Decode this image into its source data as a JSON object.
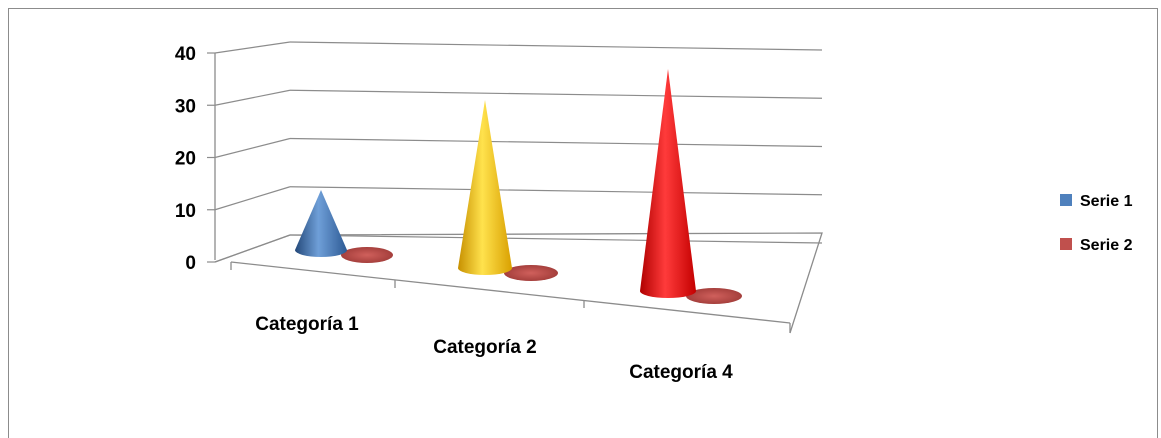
{
  "chart_data": {
    "type": "bar",
    "subtype": "3d-cone",
    "categories": [
      "Categoría 1",
      "Categoría 2",
      "Categoría 4"
    ],
    "series": [
      {
        "name": "Serie 1",
        "values": [
          10,
          28,
          37
        ],
        "point_colors": [
          "#4f81bd",
          "#ffc000",
          "#ff0000"
        ]
      },
      {
        "name": "Serie 2",
        "values": [
          0,
          0,
          0
        ],
        "color": "#c0504d"
      }
    ],
    "ylim": [
      0,
      40
    ],
    "yticks": [
      "0",
      "10",
      "20",
      "30",
      "40"
    ],
    "grid": true,
    "legend": "right"
  }
}
